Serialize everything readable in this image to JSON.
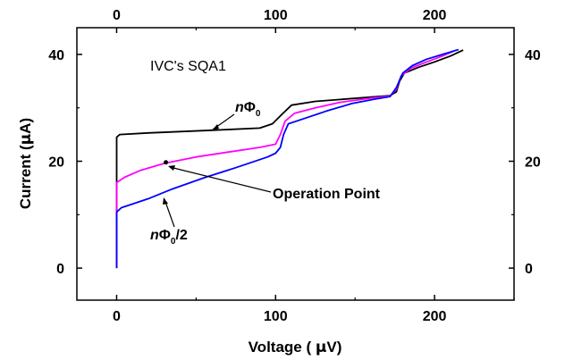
{
  "chart_data": {
    "type": "line",
    "title": "",
    "xlabel_prefix": "Voltage ( ",
    "xlabel_symbol": "μ",
    "xlabel_suffix": "V)",
    "ylabel_prefix": "Current (",
    "ylabel_symbol": "μ",
    "ylabel_suffix": "A)",
    "xlim": [
      -25,
      250
    ],
    "ylim": [
      -6,
      45
    ],
    "x_ticks": [
      0,
      100,
      200
    ],
    "y_ticks": [
      0,
      20,
      40
    ],
    "top_x_ticks": [
      0,
      100,
      200
    ],
    "right_y_ticks": [
      0,
      20,
      40
    ],
    "grid": false,
    "annotations": {
      "title_note": "IVC's SQA1",
      "operation_point": "Operation Point",
      "n_phi0_n": "n",
      "n_phi0_phi": "Φ",
      "n_phi0_sub": "0",
      "n_phi0_half_n": "n",
      "n_phi0_half_phi": "Φ",
      "n_phi0_half_sub": "0",
      "n_phi0_half_suffix": "/2"
    },
    "series": [
      {
        "color": "#000000",
        "points": [
          [
            0,
            0
          ],
          [
            0,
            24.5
          ],
          [
            2,
            25
          ],
          [
            20,
            25.3
          ],
          [
            60,
            25.8
          ],
          [
            90,
            26.2
          ],
          [
            98,
            27
          ],
          [
            103,
            28.5
          ],
          [
            110,
            30.5
          ],
          [
            125,
            31.2
          ],
          [
            160,
            32
          ],
          [
            172,
            32.3
          ],
          [
            176,
            33
          ],
          [
            178,
            35
          ],
          [
            181,
            36.5
          ],
          [
            190,
            37.6
          ],
          [
            200,
            38.6
          ],
          [
            210,
            39.7
          ],
          [
            218,
            40.8
          ]
        ]
      },
      {
        "color": "#ff00ff",
        "points": [
          [
            0,
            0
          ],
          [
            0,
            16
          ],
          [
            5,
            17
          ],
          [
            15,
            18.3
          ],
          [
            30,
            19.6
          ],
          [
            50,
            20.8
          ],
          [
            70,
            21.7
          ],
          [
            90,
            22.6
          ],
          [
            100,
            23.2
          ],
          [
            103,
            25
          ],
          [
            106,
            27.5
          ],
          [
            112,
            29
          ],
          [
            125,
            30
          ],
          [
            140,
            31
          ],
          [
            160,
            31.8
          ],
          [
            172,
            32.2
          ],
          [
            176,
            33.5
          ],
          [
            179,
            36
          ],
          [
            185,
            37.4
          ],
          [
            195,
            38.6
          ],
          [
            205,
            39.7
          ],
          [
            212,
            40.6
          ]
        ]
      },
      {
        "color": "#0000ff",
        "points": [
          [
            0,
            0
          ],
          [
            0,
            10.5
          ],
          [
            3,
            11.3
          ],
          [
            10,
            12
          ],
          [
            20,
            13
          ],
          [
            35,
            14.8
          ],
          [
            55,
            16.9
          ],
          [
            75,
            18.8
          ],
          [
            95,
            20.8
          ],
          [
            100,
            21.5
          ],
          [
            103,
            22.6
          ],
          [
            105,
            25
          ],
          [
            108,
            27
          ],
          [
            118,
            28
          ],
          [
            132,
            29.4
          ],
          [
            148,
            30.8
          ],
          [
            162,
            31.6
          ],
          [
            172,
            32.1
          ],
          [
            176,
            33.8
          ],
          [
            180,
            36.5
          ],
          [
            186,
            37.9
          ],
          [
            195,
            39.1
          ],
          [
            205,
            40
          ],
          [
            215,
            40.9
          ]
        ]
      }
    ],
    "operation_point_xy": [
      31,
      19.8
    ]
  }
}
